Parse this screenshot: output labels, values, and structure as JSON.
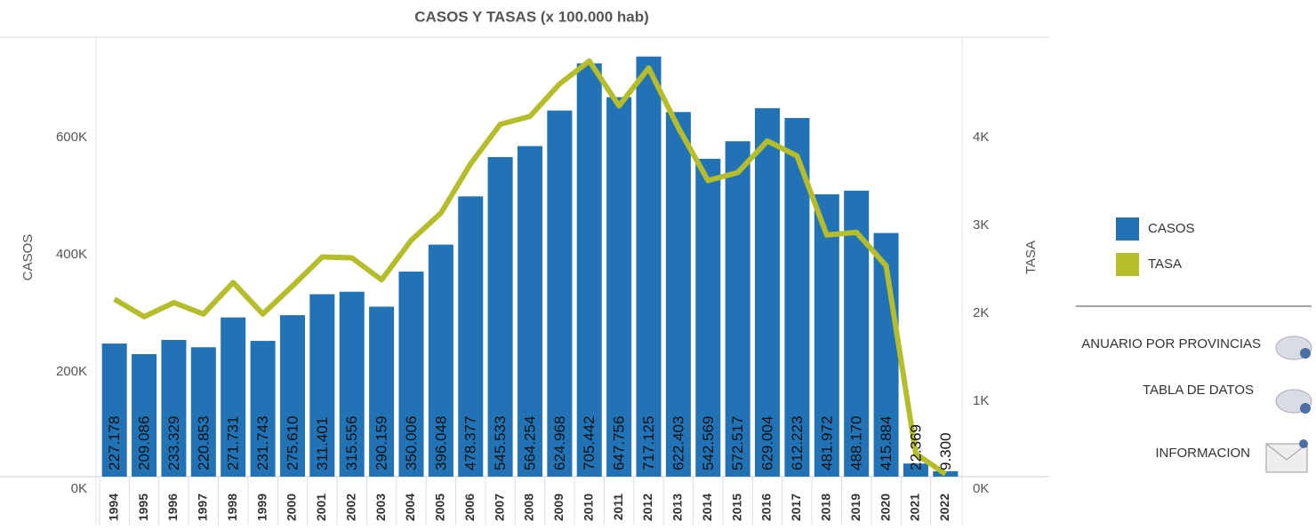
{
  "chart_data": {
    "type": "bar_line",
    "title": "CASOS Y TASAS (x 100.000 hab)",
    "y_label": "CASOS",
    "y2_label": "TASA",
    "categories": [
      "1994",
      "1995",
      "1996",
      "1997",
      "1998",
      "1999",
      "2000",
      "2001",
      "2002",
      "2003",
      "2004",
      "2005",
      "2006",
      "2007",
      "2008",
      "2009",
      "2010",
      "2011",
      "2012",
      "2013",
      "2014",
      "2015",
      "2016",
      "2017",
      "2018",
      "2019",
      "2020",
      "2021",
      "2022"
    ],
    "series": [
      {
        "name": "CASOS",
        "type": "bar",
        "color": "#2173b5",
        "values": [
          227178,
          209086,
          233329,
          220853,
          271731,
          231743,
          275610,
          311401,
          315556,
          290159,
          350006,
          396048,
          478377,
          545533,
          564254,
          624968,
          705442,
          647756,
          717125,
          622403,
          542569,
          572517,
          629004,
          612223,
          481972,
          488170,
          415884,
          22369,
          9300
        ],
        "value_labels": [
          "227.178",
          "209.086",
          "233.329",
          "220.853",
          "271.731",
          "231.743",
          "275.610",
          "311.401",
          "315.556",
          "290.159",
          "350.006",
          "396.048",
          "478.377",
          "545.533",
          "564.254",
          "624.968",
          "705.442",
          "647.756",
          "717.125",
          "622.403",
          "542.569",
          "572.517",
          "629.004",
          "612.223",
          "481.972",
          "488.170",
          "415.884",
          "22.369",
          "9.300"
        ]
      },
      {
        "name": "TASA",
        "type": "line",
        "axis": "y2",
        "color": "#b5bd2a",
        "values": [
          2020,
          1820,
          1980,
          1850,
          2210,
          1850,
          2170,
          2500,
          2490,
          2240,
          2690,
          3000,
          3560,
          4010,
          4100,
          4470,
          4730,
          4220,
          4650,
          3970,
          3370,
          3460,
          3820,
          3650,
          2750,
          2780,
          2400,
          260,
          30
        ]
      }
    ],
    "ylim": [
      0,
      750000
    ],
    "yticks": [
      {
        "value": 0,
        "label": "0K"
      },
      {
        "value": 200000,
        "label": "200K"
      },
      {
        "value": 400000,
        "label": "400K"
      },
      {
        "value": 600000,
        "label": "600K"
      }
    ],
    "y2lim": [
      0,
      5000
    ],
    "y2ticks": [
      {
        "value": 0,
        "label": "0K"
      },
      {
        "value": 1000,
        "label": "1K"
      },
      {
        "value": 2000,
        "label": "2K"
      },
      {
        "value": 3000,
        "label": "3K"
      },
      {
        "value": 4000,
        "label": "4K"
      }
    ]
  },
  "links": [
    "ANUARIO POR PROVINCIAS",
    "TABLA DE DATOS",
    "INFORMACION"
  ]
}
